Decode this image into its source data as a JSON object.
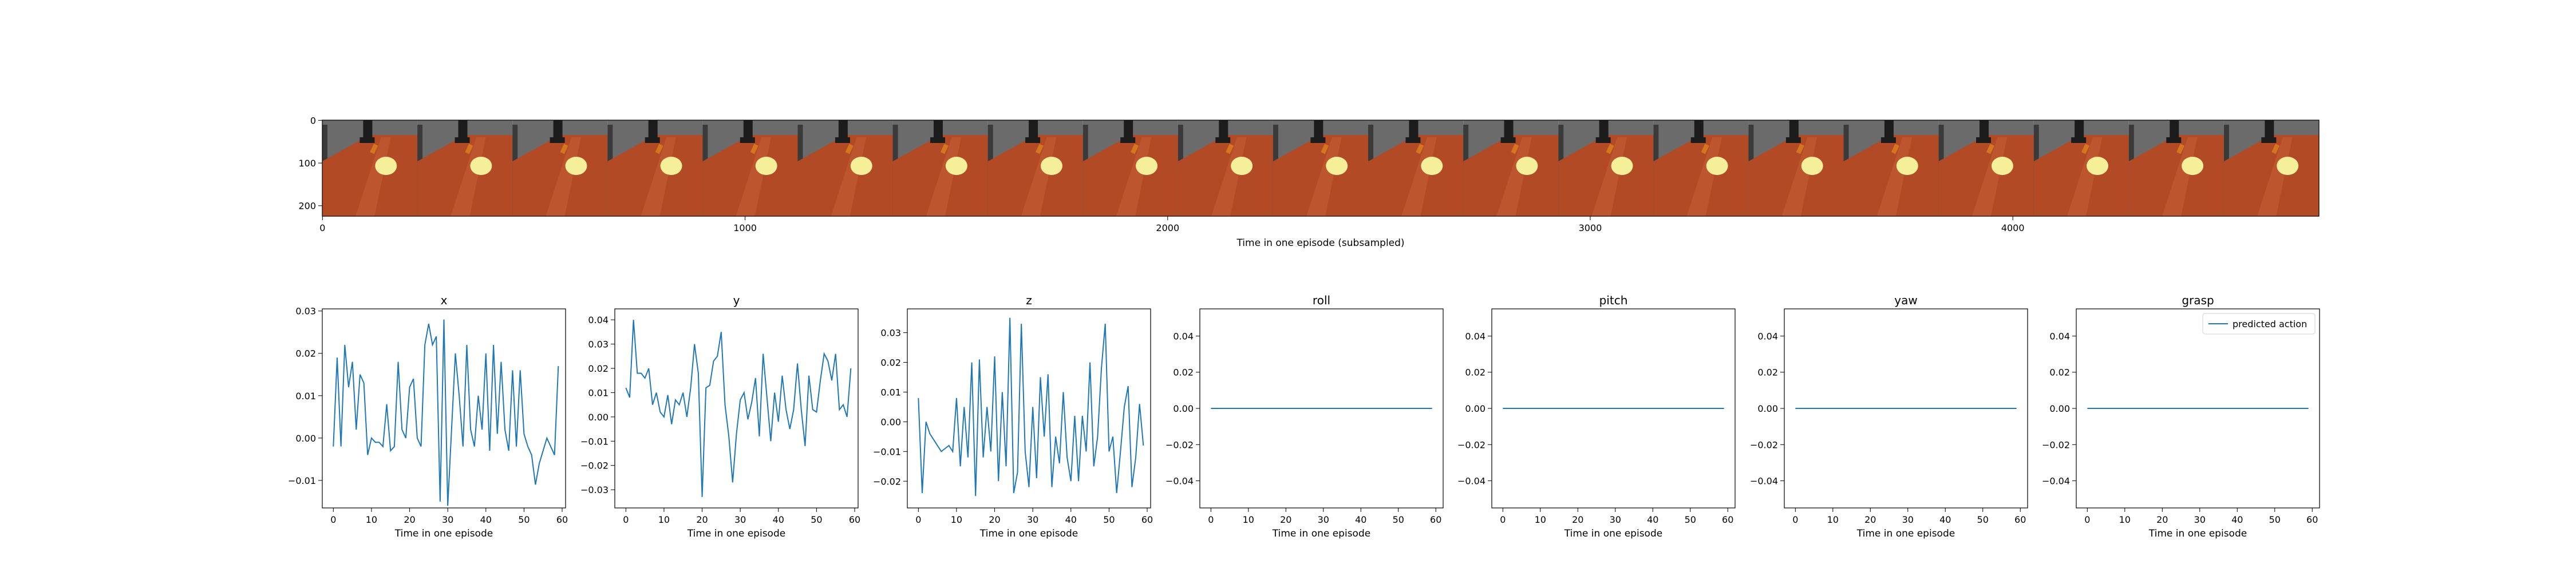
{
  "colors": {
    "series": "#1f77b4",
    "axis": "#000000",
    "background": "#ffffff"
  },
  "filmstrip": {
    "frame_count": 21,
    "x_label": "Time in one episode (subsampled)",
    "x_ticks": [
      "0",
      "1000",
      "2000",
      "3000",
      "4000"
    ],
    "y_ticks": [
      "0",
      "100",
      "200"
    ],
    "colors": {
      "wall": "#6b6b6b",
      "table": "#b24a26",
      "table_light": "#c85f36",
      "plate": "#f5ef9a",
      "gripper": "#1c1c1c",
      "object": "#d8731e"
    }
  },
  "chart_data": [
    {
      "type": "line",
      "title": "x",
      "xlabel": "Time in one episode",
      "ylabel": "",
      "xlim": [
        -2.9,
        60.9
      ],
      "ylim": [
        -0.0165,
        0.0305
      ],
      "x_ticks": [
        "0",
        "10",
        "20",
        "30",
        "40",
        "50",
        "60"
      ],
      "y_ticks": [
        {
          "v": 0.03,
          "t": "0.03"
        },
        {
          "v": 0.02,
          "t": "0.02"
        },
        {
          "v": 0.01,
          "t": "0.01"
        },
        {
          "v": 0.0,
          "t": "0.00"
        },
        {
          "v": -0.01,
          "t": "−0.01"
        }
      ],
      "series": [
        {
          "values": [
            -0.002,
            0.019,
            -0.002,
            0.022,
            0.012,
            0.018,
            0.002,
            0.015,
            0.013,
            -0.004,
            0.0,
            -0.001,
            -0.001,
            -0.002,
            0.008,
            -0.003,
            -0.002,
            0.018,
            0.002,
            0.0,
            0.012,
            0.014,
            0.0,
            -0.002,
            0.022,
            0.027,
            0.022,
            0.024,
            -0.015,
            0.028,
            -0.016,
            0.002,
            0.02,
            0.01,
            -0.002,
            0.022,
            0.002,
            -0.002,
            0.01,
            0.002,
            0.02,
            -0.003,
            0.022,
            0.001,
            0.018,
            0.002,
            -0.003,
            0.016,
            -0.002,
            0.016,
            0.001,
            -0.002,
            -0.004,
            -0.011,
            -0.006,
            -0.003,
            0.0,
            -0.002,
            -0.004,
            0.017
          ]
        }
      ]
    },
    {
      "type": "line",
      "title": "y",
      "xlabel": "Time in one episode",
      "ylabel": "",
      "xlim": [
        -2.9,
        60.9
      ],
      "ylim": [
        -0.0375,
        0.0445
      ],
      "x_ticks": [
        "0",
        "10",
        "20",
        "30",
        "40",
        "50",
        "60"
      ],
      "y_ticks": [
        {
          "v": 0.04,
          "t": "0.04"
        },
        {
          "v": 0.03,
          "t": "0.03"
        },
        {
          "v": 0.02,
          "t": "0.02"
        },
        {
          "v": 0.01,
          "t": "0.01"
        },
        {
          "v": 0.0,
          "t": "0.00"
        },
        {
          "v": -0.01,
          "t": "−0.01"
        },
        {
          "v": -0.02,
          "t": "−0.02"
        },
        {
          "v": -0.03,
          "t": "−0.03"
        }
      ],
      "series": [
        {
          "values": [
            0.012,
            0.008,
            0.04,
            0.018,
            0.018,
            0.016,
            0.02,
            0.005,
            0.01,
            0.002,
            0.0,
            0.009,
            -0.003,
            0.007,
            0.005,
            0.01,
            0.0,
            0.012,
            0.03,
            0.018,
            -0.033,
            0.012,
            0.013,
            0.023,
            0.025,
            0.035,
            0.005,
            -0.008,
            -0.027,
            -0.007,
            0.007,
            0.01,
            -0.001,
            0.006,
            0.016,
            -0.008,
            0.026,
            0.008,
            -0.01,
            0.01,
            -0.002,
            0.017,
            0.003,
            -0.005,
            0.003,
            0.022,
            0.003,
            -0.012,
            0.017,
            0.003,
            0.002,
            0.015,
            0.026,
            0.023,
            0.015,
            0.026,
            0.003,
            0.005,
            0.0,
            0.02
          ]
        }
      ]
    },
    {
      "type": "line",
      "title": "z",
      "xlabel": "Time in one episode",
      "ylabel": "",
      "xlim": [
        -2.9,
        60.9
      ],
      "ylim": [
        -0.029,
        0.038
      ],
      "x_ticks": [
        "0",
        "10",
        "20",
        "30",
        "40",
        "50",
        "60"
      ],
      "y_ticks": [
        {
          "v": 0.03,
          "t": "0.03"
        },
        {
          "v": 0.02,
          "t": "0.02"
        },
        {
          "v": 0.01,
          "t": "0.01"
        },
        {
          "v": 0.0,
          "t": "0.00"
        },
        {
          "v": -0.01,
          "t": "−0.01"
        },
        {
          "v": -0.02,
          "t": "−0.02"
        }
      ],
      "series": [
        {
          "values": [
            0.008,
            -0.024,
            0.0,
            -0.004,
            -0.006,
            -0.008,
            -0.01,
            -0.009,
            -0.008,
            -0.01,
            0.008,
            -0.015,
            0.005,
            -0.012,
            0.02,
            -0.025,
            0.021,
            -0.012,
            0.005,
            -0.01,
            0.022,
            -0.02,
            0.01,
            -0.015,
            0.035,
            -0.024,
            -0.017,
            0.033,
            -0.01,
            -0.022,
            0.005,
            -0.019,
            0.015,
            -0.005,
            0.016,
            -0.022,
            -0.005,
            -0.014,
            0.01,
            -0.012,
            -0.02,
            0.002,
            -0.02,
            0.002,
            -0.01,
            0.02,
            -0.015,
            -0.005,
            0.018,
            0.033,
            -0.01,
            -0.005,
            -0.024,
            -0.01,
            0.005,
            0.012,
            -0.022,
            -0.012,
            0.006,
            -0.008
          ]
        }
      ]
    },
    {
      "type": "line",
      "title": "roll",
      "xlabel": "Time in one episode",
      "ylabel": "",
      "xlim": [
        -2.95,
        61.95
      ],
      "ylim": [
        -0.055,
        0.055
      ],
      "x_ticks": [
        "0",
        "10",
        "20",
        "30",
        "40",
        "50",
        "60"
      ],
      "y_ticks": [
        {
          "v": 0.04,
          "t": "0.04"
        },
        {
          "v": 0.02,
          "t": "0.02"
        },
        {
          "v": 0.0,
          "t": "0.00"
        },
        {
          "v": -0.02,
          "t": "−0.02"
        },
        {
          "v": -0.04,
          "t": "−0.04"
        }
      ],
      "series": [
        {
          "values": [
            0,
            0,
            0,
            0,
            0,
            0,
            0,
            0,
            0,
            0,
            0,
            0,
            0,
            0,
            0,
            0,
            0,
            0,
            0,
            0,
            0,
            0,
            0,
            0,
            0,
            0,
            0,
            0,
            0,
            0,
            0,
            0,
            0,
            0,
            0,
            0,
            0,
            0,
            0,
            0,
            0,
            0,
            0,
            0,
            0,
            0,
            0,
            0,
            0,
            0,
            0,
            0,
            0,
            0,
            0,
            0,
            0,
            0,
            0,
            0
          ]
        }
      ]
    },
    {
      "type": "line",
      "title": "pitch",
      "xlabel": "Time in one episode",
      "ylabel": "",
      "xlim": [
        -2.95,
        61.95
      ],
      "ylim": [
        -0.055,
        0.055
      ],
      "x_ticks": [
        "0",
        "10",
        "20",
        "30",
        "40",
        "50",
        "60"
      ],
      "y_ticks": [
        {
          "v": 0.04,
          "t": "0.04"
        },
        {
          "v": 0.02,
          "t": "0.02"
        },
        {
          "v": 0.0,
          "t": "0.00"
        },
        {
          "v": -0.02,
          "t": "−0.02"
        },
        {
          "v": -0.04,
          "t": "−0.04"
        }
      ],
      "series": [
        {
          "values": [
            0,
            0,
            0,
            0,
            0,
            0,
            0,
            0,
            0,
            0,
            0,
            0,
            0,
            0,
            0,
            0,
            0,
            0,
            0,
            0,
            0,
            0,
            0,
            0,
            0,
            0,
            0,
            0,
            0,
            0,
            0,
            0,
            0,
            0,
            0,
            0,
            0,
            0,
            0,
            0,
            0,
            0,
            0,
            0,
            0,
            0,
            0,
            0,
            0,
            0,
            0,
            0,
            0,
            0,
            0,
            0,
            0,
            0,
            0,
            0
          ]
        }
      ]
    },
    {
      "type": "line",
      "title": "yaw",
      "xlabel": "Time in one episode",
      "ylabel": "",
      "xlim": [
        -2.95,
        61.95
      ],
      "ylim": [
        -0.055,
        0.055
      ],
      "x_ticks": [
        "0",
        "10",
        "20",
        "30",
        "40",
        "50",
        "60"
      ],
      "y_ticks": [
        {
          "v": 0.04,
          "t": "0.04"
        },
        {
          "v": 0.02,
          "t": "0.02"
        },
        {
          "v": 0.0,
          "t": "0.00"
        },
        {
          "v": -0.02,
          "t": "−0.02"
        },
        {
          "v": -0.04,
          "t": "−0.04"
        }
      ],
      "series": [
        {
          "values": [
            0,
            0,
            0,
            0,
            0,
            0,
            0,
            0,
            0,
            0,
            0,
            0,
            0,
            0,
            0,
            0,
            0,
            0,
            0,
            0,
            0,
            0,
            0,
            0,
            0,
            0,
            0,
            0,
            0,
            0,
            0,
            0,
            0,
            0,
            0,
            0,
            0,
            0,
            0,
            0,
            0,
            0,
            0,
            0,
            0,
            0,
            0,
            0,
            0,
            0,
            0,
            0,
            0,
            0,
            0,
            0,
            0,
            0,
            0,
            0
          ]
        }
      ]
    },
    {
      "type": "line",
      "title": "grasp",
      "xlabel": "Time in one episode",
      "ylabel": "",
      "xlim": [
        -2.95,
        61.95
      ],
      "ylim": [
        -0.055,
        0.055
      ],
      "x_ticks": [
        "0",
        "10",
        "20",
        "30",
        "40",
        "50",
        "60"
      ],
      "y_ticks": [
        {
          "v": 0.04,
          "t": "0.04"
        },
        {
          "v": 0.02,
          "t": "0.02"
        },
        {
          "v": 0.0,
          "t": "0.00"
        },
        {
          "v": -0.02,
          "t": "−0.02"
        },
        {
          "v": -0.04,
          "t": "−0.04"
        }
      ],
      "legend": {
        "placement": "top-right",
        "entries": [
          "predicted action"
        ]
      },
      "series": [
        {
          "name": "predicted action",
          "values": [
            0,
            0,
            0,
            0,
            0,
            0,
            0,
            0,
            0,
            0,
            0,
            0,
            0,
            0,
            0,
            0,
            0,
            0,
            0,
            0,
            0,
            0,
            0,
            0,
            0,
            0,
            0,
            0,
            0,
            0,
            0,
            0,
            0,
            0,
            0,
            0,
            0,
            0,
            0,
            0,
            0,
            0,
            0,
            0,
            0,
            0,
            0,
            0,
            0,
            0,
            0,
            0,
            0,
            0,
            0,
            0,
            0,
            0,
            0,
            0
          ]
        }
      ]
    }
  ]
}
